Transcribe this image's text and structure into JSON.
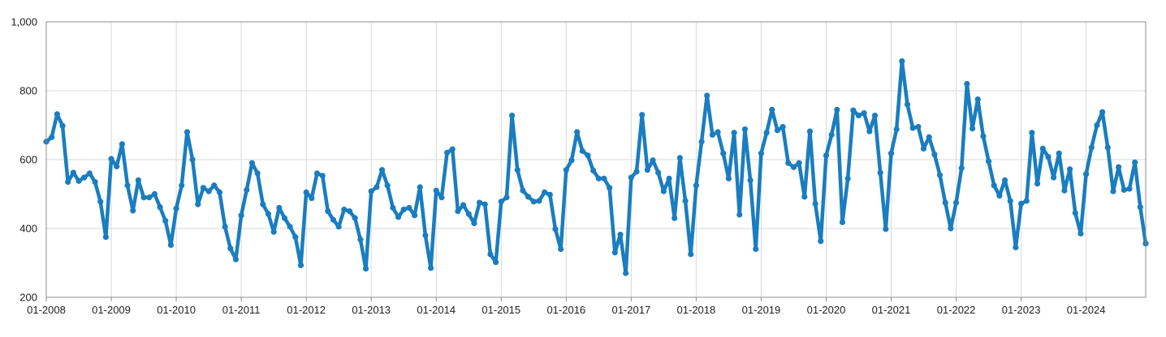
{
  "chart_data": {
    "type": "line",
    "title": "",
    "xlabel": "",
    "ylabel": "",
    "x_start": "01-2008",
    "x_end": "12-2024",
    "x_ticks": [
      "01-2008",
      "01-2009",
      "01-2010",
      "01-2011",
      "01-2012",
      "01-2013",
      "01-2014",
      "01-2015",
      "01-2016",
      "01-2017",
      "01-2018",
      "01-2019",
      "01-2020",
      "01-2021",
      "01-2022",
      "01-2023",
      "01-2024"
    ],
    "ylim": [
      200,
      1000
    ],
    "y_ticks": [
      200,
      400,
      600,
      800,
      1000
    ],
    "y_tick_labels": [
      "200",
      "400",
      "600",
      "800",
      "1,000"
    ],
    "grid": true,
    "legend": "none",
    "line_color": "#1a7dbf",
    "values": [
      652,
      665,
      732,
      698,
      535,
      562,
      538,
      548,
      560,
      535,
      478,
      375,
      602,
      580,
      645,
      525,
      452,
      540,
      490,
      490,
      500,
      462,
      422,
      352,
      458,
      525,
      680,
      600,
      470,
      518,
      508,
      525,
      505,
      405,
      342,
      310,
      438,
      512,
      590,
      560,
      470,
      442,
      390,
      460,
      430,
      405,
      375,
      293,
      505,
      488,
      560,
      553,
      450,
      425,
      405,
      455,
      450,
      430,
      368,
      283,
      508,
      520,
      570,
      525,
      460,
      433,
      455,
      460,
      438,
      520,
      380,
      285,
      510,
      490,
      620,
      630,
      450,
      468,
      442,
      415,
      475,
      470,
      325,
      302,
      478,
      490,
      728,
      570,
      510,
      492,
      478,
      480,
      505,
      498,
      398,
      340,
      570,
      598,
      680,
      625,
      612,
      568,
      545,
      545,
      518,
      330,
      382,
      270,
      548,
      565,
      730,
      570,
      598,
      562,
      508,
      545,
      430,
      605,
      480,
      325,
      525,
      652,
      786,
      672,
      680,
      618,
      545,
      678,
      440,
      688,
      540,
      340,
      618,
      678,
      745,
      685,
      695,
      590,
      578,
      590,
      492,
      682,
      472,
      363,
      612,
      672,
      745,
      418,
      545,
      743,
      728,
      735,
      682,
      728,
      562,
      398,
      618,
      688,
      886,
      760,
      692,
      695,
      632,
      665,
      615,
      555,
      475,
      400,
      475,
      575,
      820,
      690,
      775,
      668,
      595,
      525,
      495,
      540,
      480,
      345,
      472,
      480,
      678,
      530,
      632,
      608,
      548,
      618,
      510,
      572,
      445,
      385,
      558,
      635,
      700,
      738,
      635,
      508,
      578,
      512,
      515,
      592,
      462,
      356
    ]
  }
}
